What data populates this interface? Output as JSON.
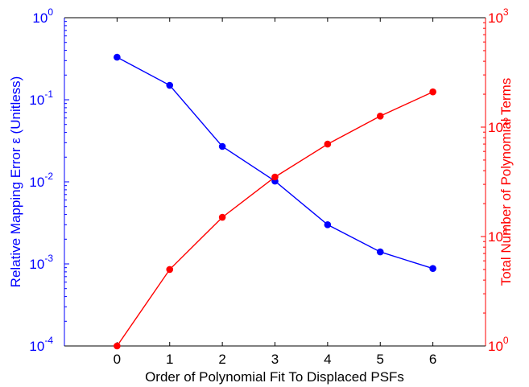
{
  "chart_data": {
    "type": "line",
    "title": "",
    "xlabel": "Order of Polynomial Fit To Displaced PSFs",
    "x": [
      0,
      1,
      2,
      3,
      4,
      5,
      6
    ],
    "x_ticks": [
      "0",
      "1",
      "2",
      "3",
      "4",
      "5",
      "6"
    ],
    "xlim": [
      -1,
      7
    ],
    "grid": false,
    "legend": "none",
    "axes": [
      {
        "side": "left",
        "label": "Relative Mapping Error ε (Unitless)",
        "scale": "log",
        "ylim": [
          0.0001,
          1
        ],
        "tick_exponents": [
          "-4",
          "-3",
          "-2",
          "-1",
          "0"
        ],
        "tick_base": "10",
        "color": "#0000ff"
      },
      {
        "side": "right",
        "label": "Total Number of Polynomial Terms",
        "scale": "log",
        "ylim": [
          1,
          1000
        ],
        "tick_exponents": [
          "0",
          "1",
          "2",
          "3"
        ],
        "tick_base": "10",
        "color": "#ff0000"
      }
    ],
    "series": [
      {
        "axis": "left",
        "color": "#0000ff",
        "marker": "circle",
        "values": [
          0.33,
          0.15,
          0.027,
          0.0102,
          0.003,
          0.0014,
          0.00088
        ]
      },
      {
        "axis": "right",
        "color": "#ff0000",
        "marker": "circle",
        "values": [
          1,
          5,
          15,
          35,
          70,
          126,
          210
        ]
      }
    ]
  }
}
